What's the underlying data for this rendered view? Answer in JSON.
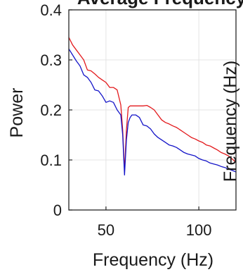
{
  "chart_data": {
    "type": "line",
    "title": "Average Frequency",
    "xlabel": "Frequency (Hz)",
    "ylabel": "Power",
    "ylabel_right": "Frequency (Hz)",
    "xlim": [
      30,
      120
    ],
    "ylim": [
      0,
      0.4
    ],
    "xticks": [
      50,
      100
    ],
    "yticks": [
      0,
      0.1,
      0.2,
      0.3,
      0.4
    ],
    "ytick_labels": [
      "0",
      "0.1",
      "0.2",
      "0.3",
      "0.4"
    ],
    "grid": true,
    "series": [
      {
        "color": "#e3191c",
        "x": [
          30,
          32,
          34,
          36,
          38,
          40,
          42,
          44,
          46,
          48,
          50,
          52,
          54,
          56,
          58,
          59,
          60,
          61,
          62,
          63,
          64,
          66,
          68,
          70,
          72,
          74,
          76,
          78,
          80,
          82,
          84,
          86,
          88,
          90,
          92,
          94,
          96,
          98,
          100,
          102,
          104,
          106,
          108,
          110,
          112,
          114,
          116,
          118,
          120
        ],
        "values": [
          0.345,
          0.33,
          0.32,
          0.31,
          0.3,
          0.28,
          0.278,
          0.272,
          0.265,
          0.26,
          0.255,
          0.245,
          0.245,
          0.24,
          0.21,
          0.16,
          0.078,
          0.16,
          0.205,
          0.208,
          0.208,
          0.208,
          0.208,
          0.208,
          0.209,
          0.205,
          0.2,
          0.19,
          0.18,
          0.175,
          0.172,
          0.168,
          0.165,
          0.16,
          0.155,
          0.15,
          0.145,
          0.142,
          0.138,
          0.135,
          0.13,
          0.128,
          0.124,
          0.12,
          0.115,
          0.112,
          0.108,
          0.102,
          0.095
        ]
      },
      {
        "color": "#1414c8",
        "x": [
          30,
          32,
          34,
          36,
          38,
          40,
          42,
          44,
          46,
          48,
          50,
          52,
          54,
          56,
          58,
          59,
          60,
          61,
          62,
          63,
          64,
          66,
          68,
          70,
          72,
          74,
          76,
          78,
          80,
          82,
          84,
          86,
          88,
          90,
          92,
          94,
          96,
          98,
          100,
          102,
          104,
          106,
          108,
          110,
          112,
          114,
          116,
          118,
          120
        ],
        "values": [
          0.322,
          0.31,
          0.298,
          0.288,
          0.27,
          0.265,
          0.255,
          0.24,
          0.238,
          0.228,
          0.215,
          0.218,
          0.215,
          0.2,
          0.19,
          0.15,
          0.07,
          0.14,
          0.175,
          0.185,
          0.19,
          0.19,
          0.185,
          0.17,
          0.168,
          0.162,
          0.152,
          0.145,
          0.14,
          0.135,
          0.13,
          0.128,
          0.125,
          0.12,
          0.115,
          0.112,
          0.11,
          0.108,
          0.103,
          0.1,
          0.098,
          0.094,
          0.092,
          0.09,
          0.087,
          0.085,
          0.082,
          0.079,
          0.076
        ]
      }
    ]
  }
}
